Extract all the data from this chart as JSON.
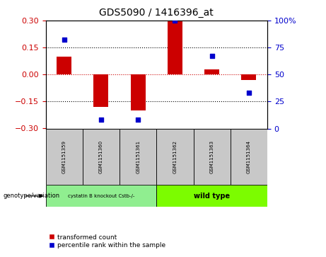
{
  "title": "GDS5090 / 1416396_at",
  "samples": [
    "GSM1151359",
    "GSM1151360",
    "GSM1151361",
    "GSM1151362",
    "GSM1151363",
    "GSM1151364"
  ],
  "transformed_counts": [
    0.1,
    -0.18,
    -0.2,
    0.3,
    0.03,
    -0.03
  ],
  "percentile_ranks": [
    82,
    8,
    8,
    100,
    67,
    33
  ],
  "ylim_left": [
    -0.3,
    0.3
  ],
  "ylim_right": [
    0,
    100
  ],
  "yticks_left": [
    -0.3,
    -0.15,
    0,
    0.15,
    0.3
  ],
  "yticks_right": [
    0,
    25,
    50,
    75,
    100
  ],
  "dotted_lines": [
    -0.15,
    0.15
  ],
  "group1_label": "cystatin B knockout Cstb-/-",
  "group2_label": "wild type",
  "group1_color": "#90EE90",
  "group2_color": "#7CFC00",
  "group1_indices": [
    0,
    1,
    2
  ],
  "group2_indices": [
    3,
    4,
    5
  ],
  "bar_color": "#CC0000",
  "dot_color": "#0000CC",
  "bar_width": 0.4,
  "dot_size": 25,
  "legend_bar_label": "transformed count",
  "legend_dot_label": "percentile rank within the sample",
  "genotype_label": "genotype/variation",
  "left_tick_color": "#CC0000",
  "right_tick_color": "#0000CC",
  "background_color": "#c8c8c8"
}
